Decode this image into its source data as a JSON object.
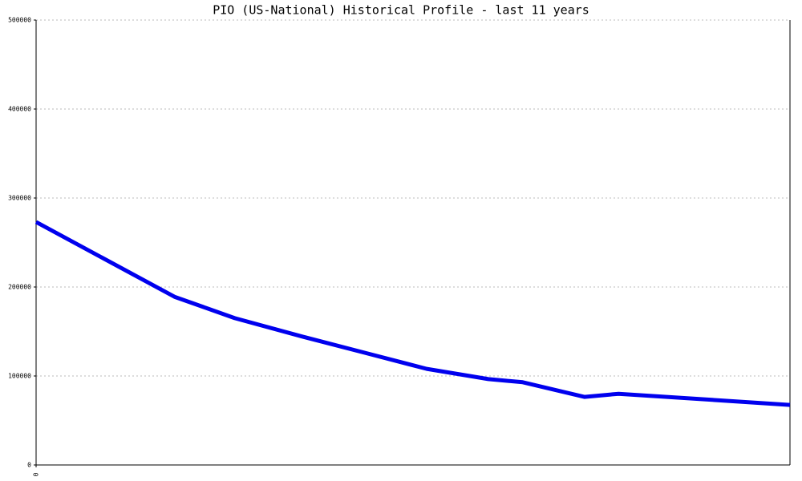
{
  "chart_data": {
    "type": "line",
    "title": "PIO (US-National) Historical Profile - last 11 years",
    "x": [
      0,
      2.02,
      2.9,
      3.9,
      4.8,
      5.7,
      6.6,
      7.1,
      8,
      8.5,
      11
    ],
    "series": [
      {
        "color": "#0000ee",
        "values": [
          273000,
          189000,
          165000,
          144000,
          126000,
          108000,
          96500,
          93000,
          76500,
          80000,
          67500
        ]
      }
    ],
    "xlim": [
      0,
      11
    ],
    "xticks": [
      0
    ],
    "ylim": [
      0,
      500000
    ],
    "yticks": [
      0,
      100000,
      200000,
      300000,
      400000,
      500000
    ],
    "grid": true
  }
}
